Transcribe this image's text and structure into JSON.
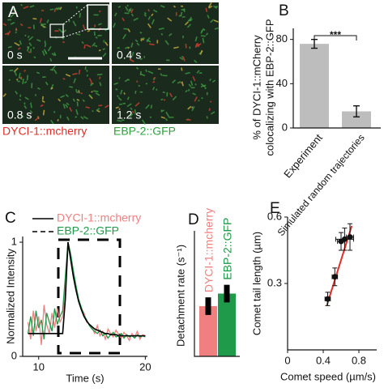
{
  "panel_a": {
    "label": "A",
    "frames": [
      "0 s",
      "0.4 s",
      "0.8 s",
      "1.2 s"
    ],
    "legend": [
      {
        "name": "DYCI-1::mcherry",
        "color": "#e0302a"
      },
      {
        "name": "EBP-2::GFP",
        "color": "#2ea03a"
      }
    ]
  },
  "chart_data": [
    {
      "type": "bar",
      "panel": "B",
      "ylabel": [
        "% of DYCI-1::mCherry",
        "colocalizing with EBP-2::GFP"
      ],
      "categories": [
        "Experiment",
        "Simulated random trajectories"
      ],
      "values": [
        76,
        15
      ],
      "errors": [
        4,
        5
      ],
      "color": "#bdbdbd",
      "annotation": "***",
      "ylim": [
        0,
        90
      ],
      "yticks": [
        0,
        40,
        80
      ]
    },
    {
      "type": "line",
      "panel": "C",
      "xlabel": "Time (s)",
      "ylabel": "Normalized Intensity",
      "x": [
        9,
        9.25,
        9.5,
        9.75,
        10,
        10.25,
        10.5,
        10.75,
        11,
        11.25,
        11.5,
        11.75,
        12,
        12.25,
        12.5,
        12.75,
        13,
        13.25,
        13.5,
        13.75,
        14,
        14.25,
        14.5,
        14.75,
        15,
        15.25,
        15.5,
        15.75,
        16,
        16.25,
        16.5,
        16.75,
        17,
        17.25,
        17.5,
        17.75,
        18,
        18.25,
        18.5,
        18.75,
        19,
        19.25,
        19.5,
        19.75,
        20
      ],
      "series": [
        {
          "name": "DYCI-1::mcherry",
          "color": "#f08080",
          "legend_dash": false,
          "values": [
            0.3,
            0.15,
            0.4,
            0.22,
            0.35,
            0.1,
            0.45,
            0.28,
            0.2,
            0.38,
            0.25,
            0.42,
            0.3,
            0.35,
            0.6,
            0.97,
            0.88,
            0.72,
            0.6,
            0.5,
            0.42,
            0.38,
            0.3,
            0.28,
            0.25,
            0.2,
            0.27,
            0.18,
            0.22,
            0.15,
            0.24,
            0.2,
            0.17,
            0.23,
            0.19,
            0.16,
            0.21,
            0.18,
            0.14,
            0.2,
            0.17,
            0.22,
            0.15,
            0.19,
            0.18
          ]
        },
        {
          "name": "EBP-2::GFP",
          "color": "#1f9a4a",
          "legend_dash": true,
          "values": [
            0.2,
            0.35,
            0.18,
            0.4,
            0.25,
            0.32,
            0.15,
            0.38,
            0.3,
            0.22,
            0.42,
            0.28,
            0.35,
            0.4,
            0.7,
            1.0,
            0.9,
            0.75,
            0.62,
            0.5,
            0.43,
            0.36,
            0.32,
            0.27,
            0.24,
            0.22,
            0.2,
            0.23,
            0.18,
            0.2,
            0.16,
            0.19,
            0.21,
            0.17,
            0.18,
            0.2,
            0.16,
            0.19,
            0.17,
            0.18,
            0.16,
            0.19,
            0.17,
            0.18,
            0.17
          ]
        }
      ],
      "fit_values": [
        0.2,
        0.2,
        0.2,
        0.2,
        0.2,
        0.2,
        0.2,
        0.2,
        0.2,
        0.2,
        0.2,
        0.2,
        0.2,
        0.2,
        0.5,
        1.0,
        0.85,
        0.7,
        0.58,
        0.48,
        0.41,
        0.35,
        0.31,
        0.28,
        0.26,
        0.24,
        0.23,
        0.22,
        0.21,
        0.2,
        0.2,
        0.19,
        0.19,
        0.19,
        0.18,
        0.18,
        0.18,
        0.18,
        0.18,
        0.18,
        0.18,
        0.18,
        0.18,
        0.18,
        0.18
      ],
      "fit_color": "#000000",
      "xlim": [
        8.5,
        20.2
      ],
      "xticks": [
        10,
        20
      ],
      "ylim": [
        0,
        1.05
      ],
      "yticks": [
        0,
        1
      ]
    },
    {
      "type": "bar",
      "panel": "D",
      "ylabel": "Detachment rate (s⁻¹)",
      "categories": [
        "DYCI-1::mcherry",
        "EBP-2::GFP"
      ],
      "values": [
        0.4,
        0.5
      ],
      "errors": [
        0.07,
        0.07
      ],
      "colors": [
        "#f08080",
        "#1f9a4a"
      ],
      "ylim": [
        0,
        1
      ]
    },
    {
      "type": "scatter",
      "panel": "E",
      "xlabel": "Comet speed (µm/s)",
      "ylabel": "Comet tail length (µm)",
      "x": [
        0.45,
        0.53,
        0.6,
        0.64,
        0.7
      ],
      "y": [
        0.23,
        0.33,
        0.49,
        0.5,
        0.51
      ],
      "xerr": [
        0.03,
        0.03,
        0.04,
        0.1,
        0.04
      ],
      "yerr": [
        0.03,
        0.04,
        0.04,
        0.05,
        0.06
      ],
      "fit": {
        "x": [
          0.44,
          0.72
        ],
        "y": [
          0.2,
          0.56
        ],
        "color": "#e0302a"
      },
      "xlim": [
        0,
        1
      ],
      "xticks": [
        0,
        0.4,
        0.8
      ],
      "ylim": [
        0,
        0.6
      ],
      "yticks": [
        0.3,
        0.6
      ]
    }
  ]
}
